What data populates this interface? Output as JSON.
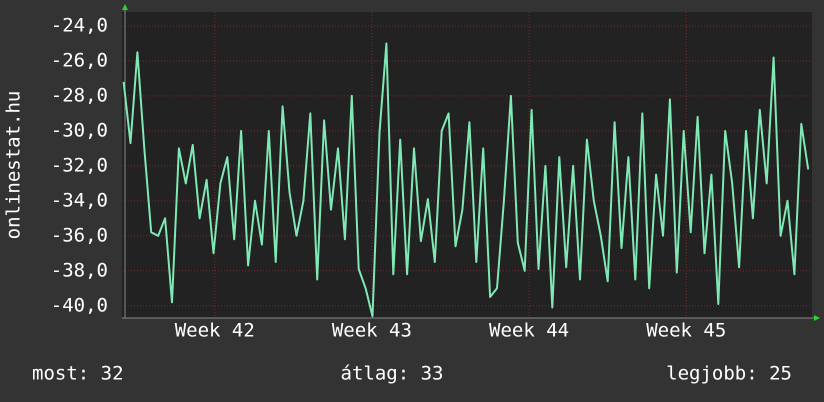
{
  "chart_data": {
    "type": "line",
    "y_label": "onlinestat.hu",
    "x": [
      41.42,
      41.464,
      41.508,
      41.552,
      41.596,
      41.64,
      41.684,
      41.728,
      41.772,
      41.816,
      41.86,
      41.904,
      41.948,
      41.992,
      42.036,
      42.08,
      42.124,
      42.168,
      42.212,
      42.256,
      42.3,
      42.344,
      42.388,
      42.432,
      42.476,
      42.52,
      42.564,
      42.608,
      42.652,
      42.696,
      42.74,
      42.784,
      42.828,
      42.872,
      42.916,
      42.96,
      43.004,
      43.048,
      43.092,
      43.136,
      43.18,
      43.224,
      43.268,
      43.312,
      43.356,
      43.4,
      43.444,
      43.488,
      43.532,
      43.576,
      43.62,
      43.664,
      43.708,
      43.752,
      43.796,
      43.84,
      43.884,
      43.928,
      43.972,
      44.016,
      44.06,
      44.104,
      44.148,
      44.192,
      44.236,
      44.28,
      44.324,
      44.368,
      44.412,
      44.456,
      44.5,
      44.544,
      44.588,
      44.632,
      44.676,
      44.72,
      44.764,
      44.808,
      44.852,
      44.896,
      44.94,
      44.984,
      45.028,
      45.072,
      45.116,
      45.16,
      45.204,
      45.248,
      45.292,
      45.336,
      45.38,
      45.424,
      45.468,
      45.512,
      45.556,
      45.6,
      45.644,
      45.688,
      45.732,
      45.776
    ],
    "series": [
      {
        "color": "#7fe8b4",
        "values": [
          -27.2,
          -30.7,
          -25.5,
          -31,
          -35.8,
          -36,
          -35,
          -39.8,
          -31,
          -33,
          -30.8,
          -35,
          -32.8,
          -37,
          -33,
          -31.5,
          -36.2,
          -30,
          -37.7,
          -34,
          -36.5,
          -30,
          -37.5,
          -28.6,
          -33.5,
          -36,
          -34,
          -29,
          -38.5,
          -29.4,
          -34.5,
          -31,
          -36.2,
          -28,
          -37.9,
          -39,
          -40.6,
          -30.1,
          -25,
          -38.2,
          -30.5,
          -38.2,
          -31,
          -36.3,
          -33.9,
          -37.5,
          -30,
          -29,
          -36.6,
          -34.5,
          -29.5,
          -37.5,
          -31,
          -39.5,
          -39,
          -34,
          -28,
          -36.4,
          -38,
          -28.8,
          -37.9,
          -32,
          -40.1,
          -31.5,
          -37.8,
          -32,
          -38.5,
          -30.5,
          -34,
          -36,
          -38.6,
          -29.5,
          -36.7,
          -31.5,
          -38.5,
          -29,
          -39,
          -32.5,
          -36,
          -28.2,
          -38.1,
          -30,
          -35.8,
          -29.2,
          -37,
          -32.5,
          -39.9,
          -30,
          -33,
          -37.8,
          -30,
          -35,
          -28.8,
          -33,
          -25.8,
          -36,
          -34,
          -38.2,
          -29.6,
          -32.2
        ]
      }
    ],
    "xlim": [
      41.41,
      45.8
    ],
    "xticks": [
      {
        "value": 42,
        "label": "Week 42"
      },
      {
        "value": 43,
        "label": "Week 43"
      },
      {
        "value": 44,
        "label": "Week 44"
      },
      {
        "value": 45,
        "label": "Week 45"
      }
    ],
    "ylim": [
      -40.7,
      -23.2
    ],
    "yticks": [
      {
        "value": -40,
        "label": "-40,0"
      },
      {
        "value": -38,
        "label": "-38,0"
      },
      {
        "value": -36,
        "label": "-36,0"
      },
      {
        "value": -34,
        "label": "-34,0"
      },
      {
        "value": -32,
        "label": "-32,0"
      },
      {
        "value": -30,
        "label": "-30,0"
      },
      {
        "value": -28,
        "label": "-28,0"
      },
      {
        "value": -26,
        "label": "-26,0"
      },
      {
        "value": -24,
        "label": "-24,0"
      }
    ],
    "grid": true,
    "footer": [
      "most: 32",
      "átlag: 33",
      "legjobb: 25"
    ]
  }
}
